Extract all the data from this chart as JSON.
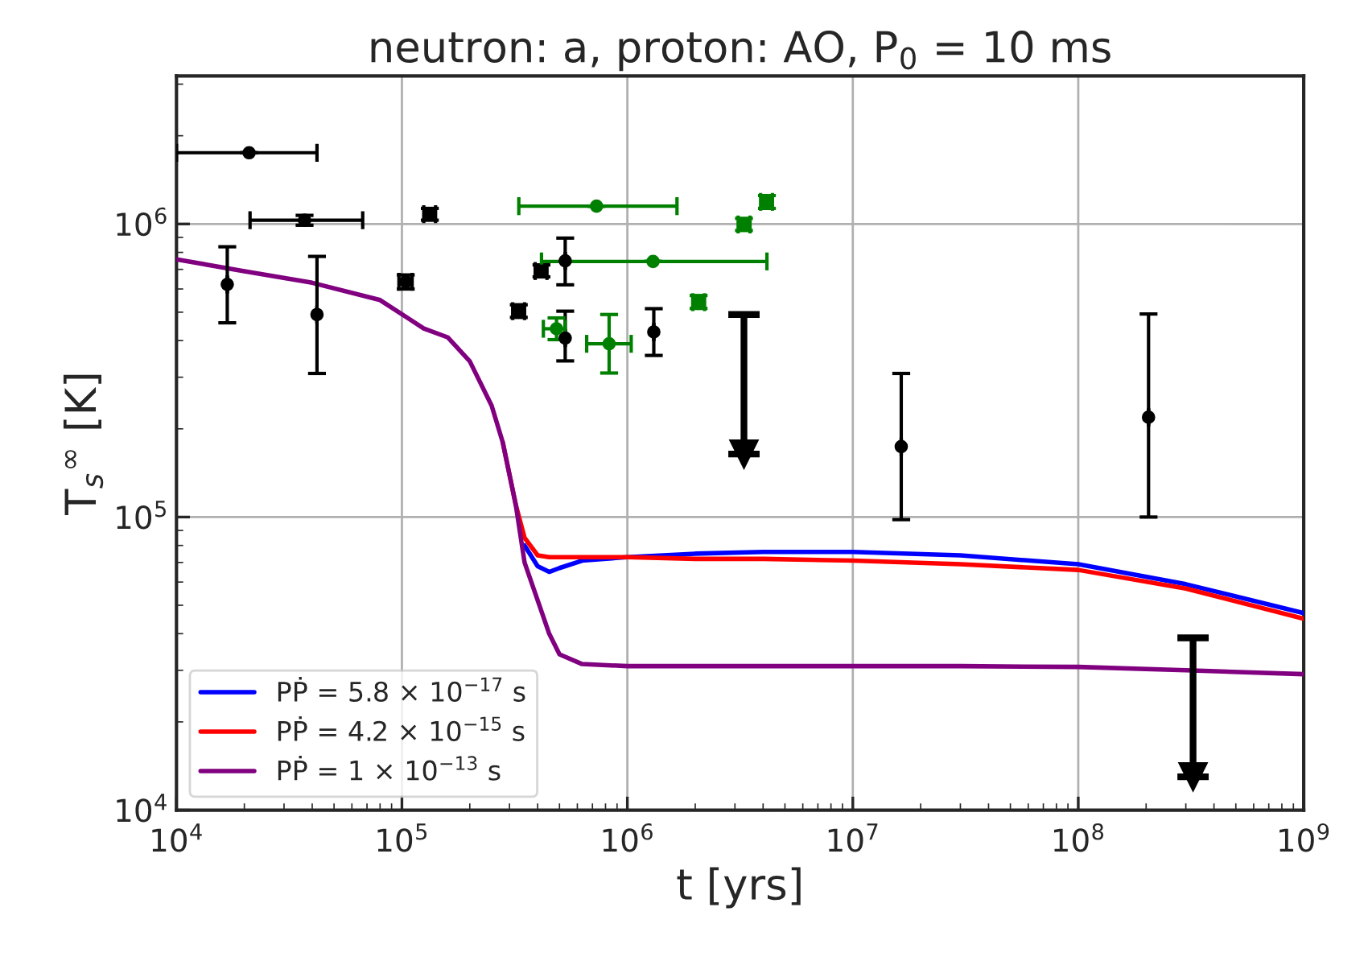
{
  "chart_data": {
    "type": "line",
    "title": "neutron: a, proton: AO, P$_{0}$ = 10 ms",
    "xlabel": "t [yrs]",
    "ylabel": "T$_{s}$$^{∞}$ [K]",
    "log": "xy",
    "grid": true,
    "legend": "bottom left",
    "xlim": [
      10000,
      1000000000
    ],
    "ylim": [
      10000,
      3200000
    ],
    "xticks": [
      {
        "value": 10000,
        "label": "10$^{4}$"
      },
      {
        "value": 100000,
        "label": "10$^{5}$"
      },
      {
        "value": 1000000,
        "label": "10$^{6}$"
      },
      {
        "value": 10000000,
        "label": "10$^{7}$"
      },
      {
        "value": 100000000,
        "label": "10$^{8}$"
      },
      {
        "value": 1000000000,
        "label": "10$^{9}$"
      }
    ],
    "yticks": [
      {
        "value": 10000,
        "label": "10$^{4}$"
      },
      {
        "value": 100000,
        "label": "10$^{5}$"
      },
      {
        "value": 1000000,
        "label": "10$^{6}$"
      }
    ],
    "series": [
      {
        "type": "scatter",
        "color": "#000000",
        "marker": "circle",
        "x": [
          21000,
          37000,
          16800,
          42000,
          104000,
          133000,
          330000,
          416000,
          530000,
          530000,
          1310000,
          16400000,
          205000000
        ],
        "values": [
          1750000,
          1030000,
          622000,
          491000,
          635000,
          1080000,
          504000,
          691000,
          748000,
          408000,
          428000,
          174000,
          219000
        ],
        "errors": [
          null,
          [
            990000,
            1070000
          ],
          [
            460000,
            836000
          ],
          [
            309000,
            775000
          ],
          [
            600000,
            670000
          ],
          [
            1030000,
            1130000
          ],
          [
            480000,
            530000
          ],
          [
            660000,
            725000
          ],
          [
            620000,
            895000
          ],
          [
            341000,
            504000
          ],
          [
            356000,
            514000
          ],
          [
            98000,
            309000
          ],
          [
            100000,
            493000
          ]
        ],
        "xerrors": [
          [
            10000,
            42000
          ],
          [
            21200,
            67000
          ],
          null,
          null,
          [
            97000,
            111000
          ],
          [
            125000,
            141000
          ],
          [
            310000,
            350000
          ],
          [
            390000,
            440000
          ],
          null,
          null,
          null,
          null,
          null
        ]
      },
      {
        "type": "scatter",
        "color": "#008000",
        "marker": "circle",
        "x": [
          730000,
          1300000,
          3290000,
          4160000,
          2070000,
          485000,
          830000
        ],
        "values": [
          1150000,
          745000,
          996000,
          1190000,
          541000,
          439000,
          390000
        ],
        "errors": [
          null,
          null,
          [
            950000,
            1045000
          ],
          [
            1130000,
            1250000
          ],
          [
            515000,
            570000
          ],
          [
            403000,
            478000
          ],
          [
            310000,
            491000
          ]
        ],
        "xerrors": [
          [
            330000,
            1660000
          ],
          [
            416000,
            4160000
          ],
          [
            3100000,
            3500000
          ],
          [
            3900000,
            4400000
          ],
          [
            1950000,
            2200000
          ],
          [
            424000,
            530000
          ],
          [
            660000,
            1040000
          ]
        ]
      },
      {
        "type": "scatter",
        "color": "#000000",
        "marker": "triangle",
        "x": [
          3290000,
          323000000
        ],
        "values": [
          164000,
          13000
        ],
        "errors": [
          [
            164000,
            491000
          ],
          [
            13000,
            38700
          ]
        ]
      },
      {
        "name": "PṖ = 5.8 × 10$^{−17}$ s",
        "color": "#0000ff",
        "x": [
          350000,
          400000,
          450000,
          500000,
          630000,
          1000000,
          2000000,
          4000000,
          10000000,
          30000000,
          100000000,
          300000000,
          1000000000
        ],
        "values": [
          80000,
          68000,
          65000,
          67000,
          71000,
          73000,
          75000,
          76000,
          76000,
          74000,
          69000,
          59000,
          47000
        ]
      },
      {
        "name": "PṖ = 4.2 × 10$^{−15}$ s",
        "color": "#ff0000",
        "x": [
          280000,
          320000,
          350000,
          400000,
          450000,
          500000,
          630000,
          1000000,
          2000000,
          4000000,
          10000000,
          30000000,
          100000000,
          300000000,
          1000000000
        ],
        "values": [
          180000,
          110000,
          85000,
          74000,
          73000,
          73000,
          73000,
          73000,
          72000,
          72000,
          71000,
          69000,
          66000,
          57000,
          45000
        ]
      },
      {
        "name": "PṖ = 1 × 10$^{−13}$ s",
        "color": "#800080",
        "x": [
          10000,
          20000,
          40000,
          80000,
          125000,
          160000,
          200000,
          250000,
          280000,
          320000,
          350000,
          400000,
          450000,
          500000,
          630000,
          1000000,
          2000000,
          4000000,
          10000000,
          30000000,
          100000000,
          300000000,
          1000000000
        ],
        "values": [
          757000,
          690000,
          630000,
          550000,
          440000,
          410000,
          340000,
          240000,
          180000,
          110000,
          70000,
          52000,
          40000,
          34000,
          31500,
          31000,
          31000,
          31000,
          31000,
          31000,
          30800,
          30000,
          29100
        ]
      }
    ]
  }
}
